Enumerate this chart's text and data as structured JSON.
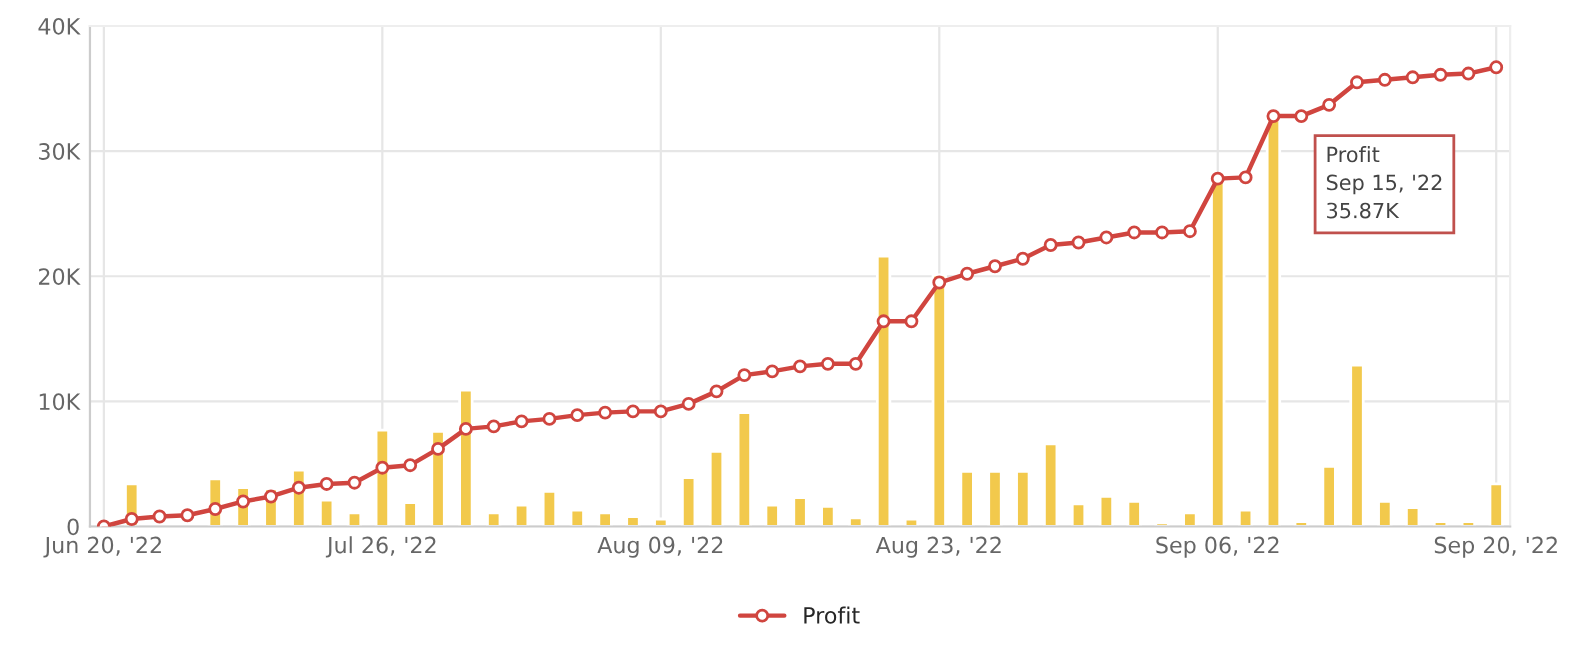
{
  "chart_data": {
    "type": "line",
    "categories": [
      "Jun 20, '22",
      null,
      null,
      null,
      null,
      null,
      null,
      null,
      null,
      null,
      "Jul 26, '22",
      null,
      null,
      null,
      null,
      null,
      null,
      null,
      null,
      null,
      "Aug 09, '22",
      null,
      null,
      null,
      null,
      null,
      null,
      null,
      null,
      null,
      "Aug 23, '22",
      null,
      null,
      null,
      null,
      null,
      null,
      null,
      null,
      null,
      "Sep 06, '22",
      null,
      null,
      null,
      null,
      null,
      null,
      null,
      null,
      null,
      "Sep 20, '22"
    ],
    "series": [
      {
        "type": "bar",
        "color": "#f2c94c",
        "values": [
          null,
          3400,
          null,
          null,
          3800,
          3100,
          3000,
          4500,
          2100,
          1100,
          7700,
          1900,
          7600,
          10900,
          1100,
          1700,
          2800,
          1300,
          1100,
          800,
          600,
          3900,
          6000,
          9100,
          1700,
          2300,
          1600,
          700,
          21600,
          600,
          20100,
          4400,
          4400,
          4400,
          6600,
          1800,
          2400,
          2000,
          300,
          1100,
          27700,
          1300,
          32500,
          400,
          4800,
          12900,
          2000,
          1500,
          400,
          400,
          3400
        ]
      },
      {
        "name": "Profit",
        "color": "#d0453f",
        "marker": "circle",
        "line_style": "solid",
        "values": [
          0,
          600,
          800,
          900,
          1400,
          2000,
          2400,
          3100,
          3400,
          3500,
          4700,
          4900,
          6200,
          7800,
          8000,
          8400,
          8600,
          8900,
          9100,
          9200,
          9200,
          9800,
          10800,
          12100,
          12400,
          12800,
          13000,
          13000,
          16400,
          16400,
          19500,
          20200,
          20800,
          21400,
          22500,
          22700,
          23100,
          23500,
          23500,
          23600,
          27800,
          27900,
          32800,
          32800,
          33700,
          35500,
          35700,
          35900,
          36100,
          36200,
          36700
        ]
      }
    ],
    "ylim": [
      0,
      40000
    ],
    "yticks": [
      0,
      {
        "value": 10000,
        "label": "10K"
      },
      {
        "value": 20000,
        "label": "20K"
      },
      {
        "value": 30000,
        "label": "30K"
      },
      {
        "value": 40000,
        "label": "40K"
      }
    ],
    "grid": true,
    "legend": "bottom",
    "annotations": [
      "Profit\nSep 15, '22\n35.87K"
    ]
  }
}
